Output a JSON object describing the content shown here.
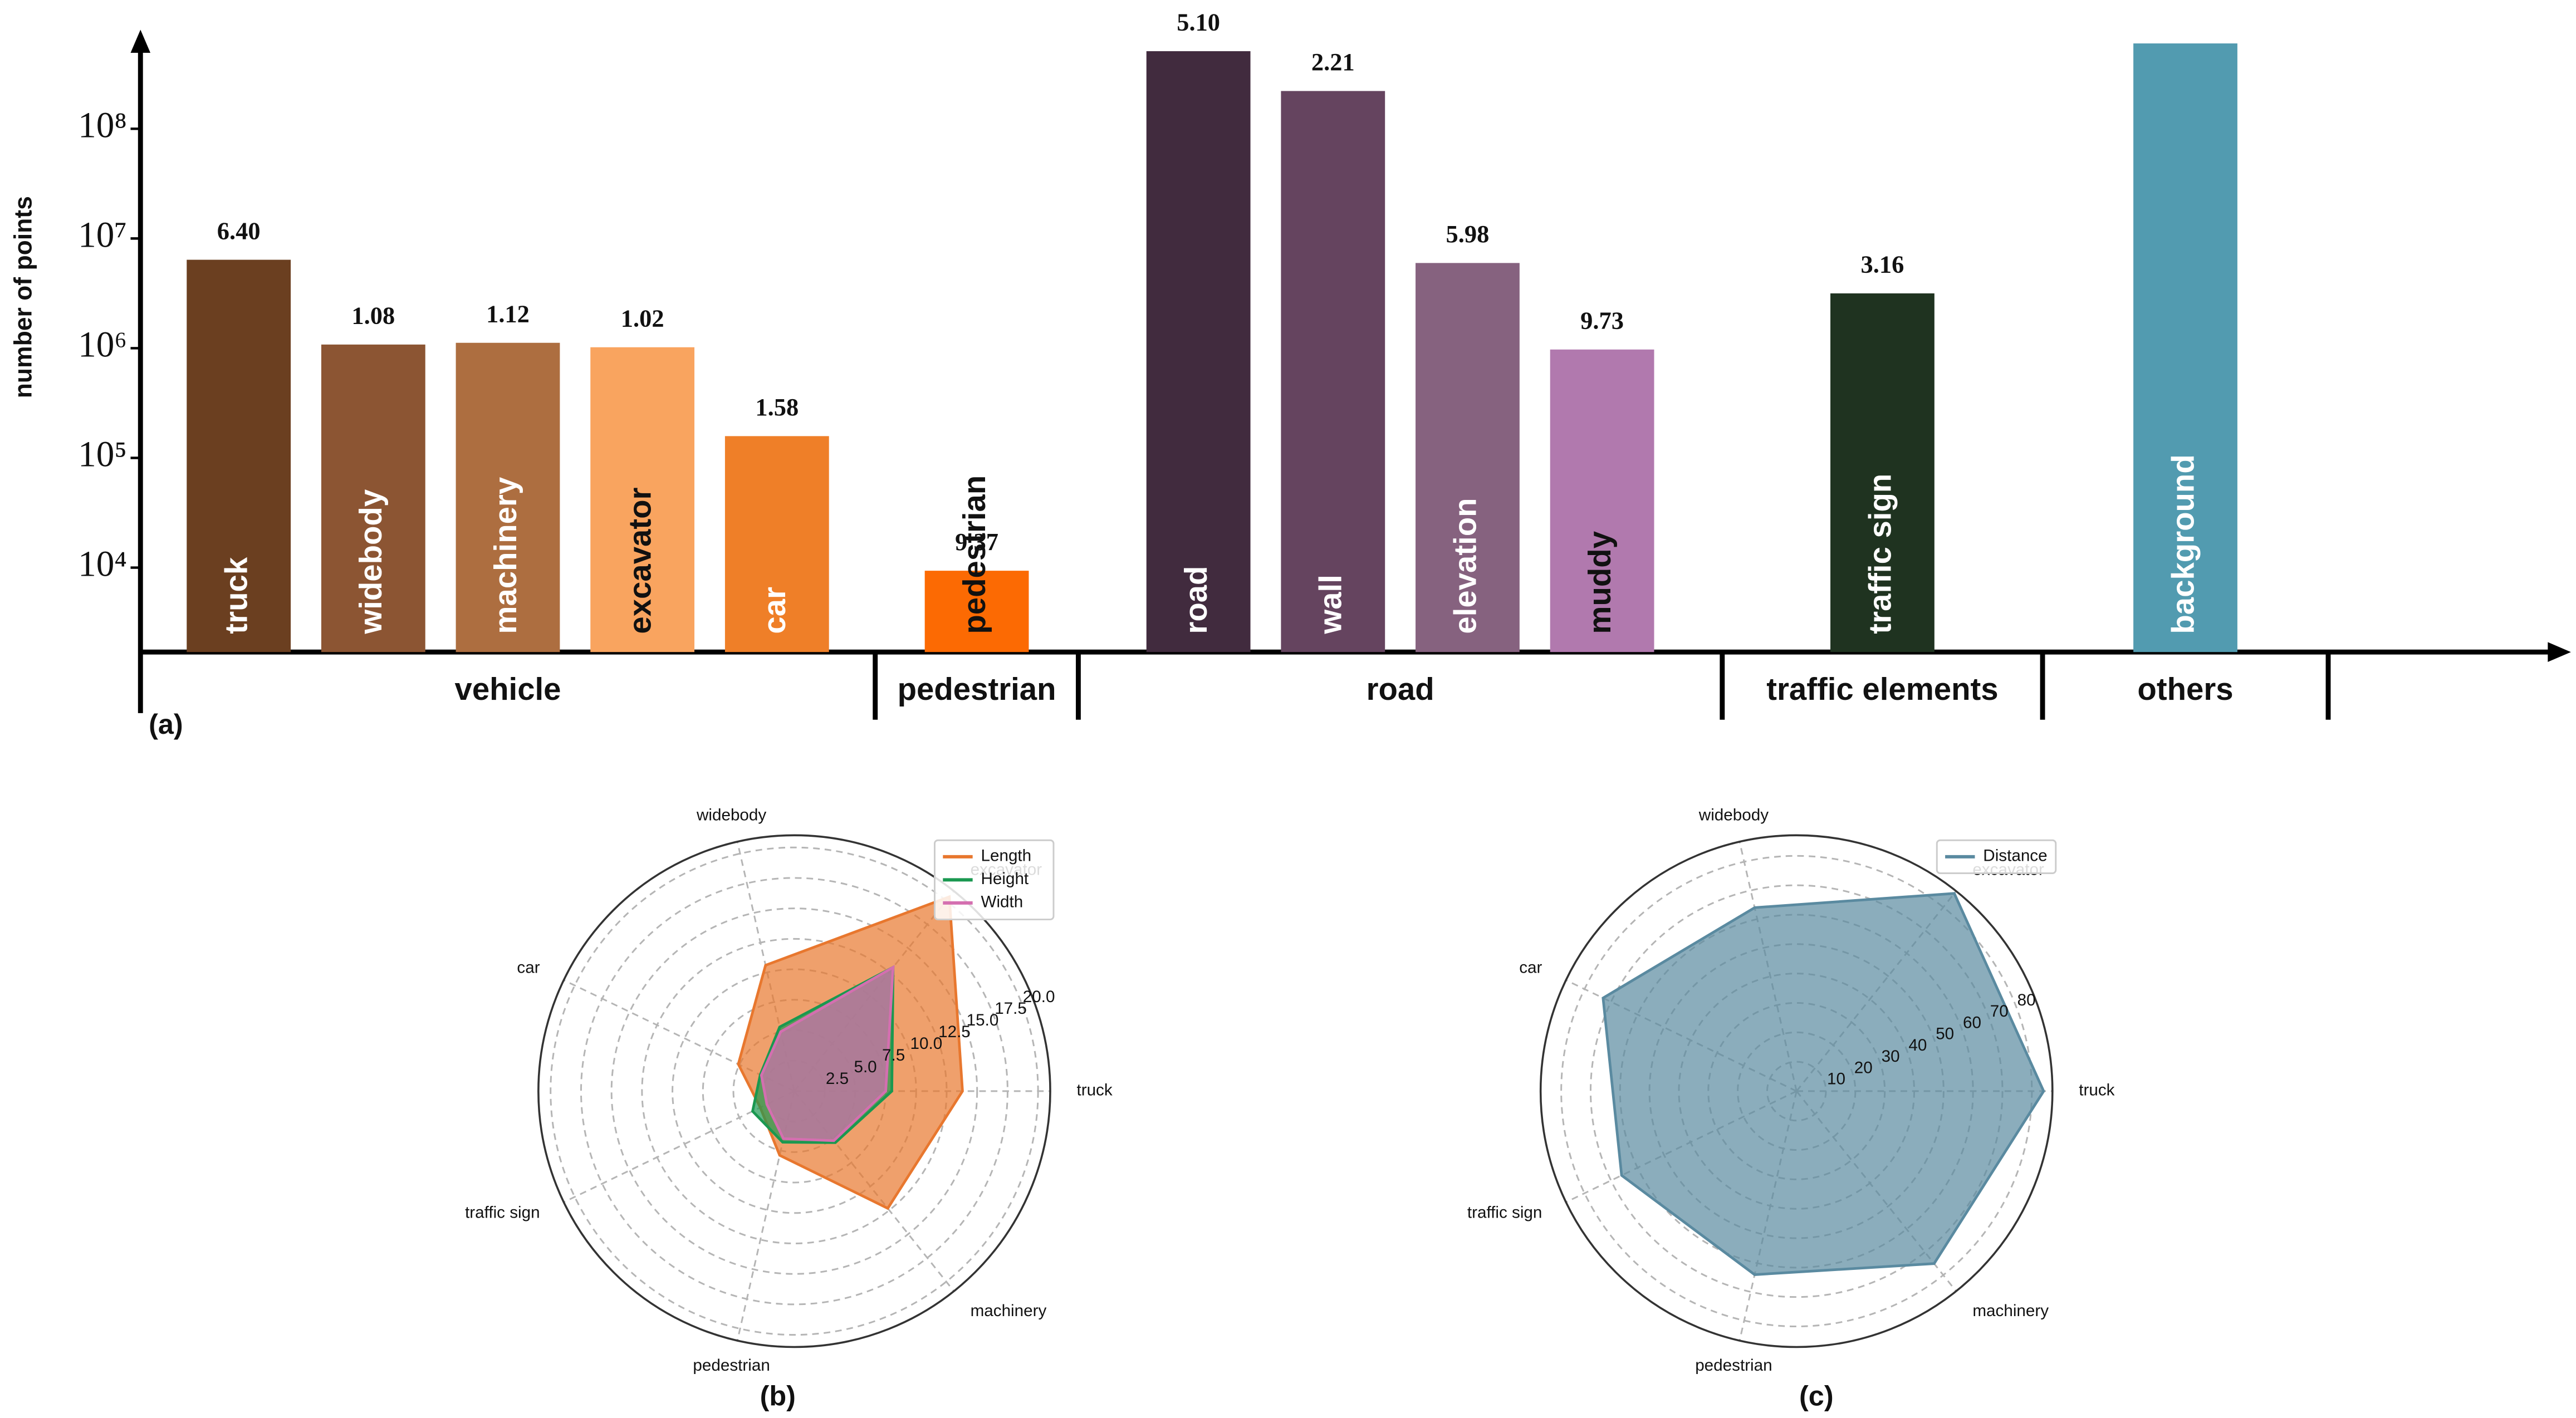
{
  "chart_data": [
    {
      "type": "bar",
      "label": "(a)",
      "ylabel": "number of points",
      "yscale": "log",
      "categories": [
        "truck",
        "widebody",
        "machinery",
        "excavator",
        "car",
        "pedestrian",
        "road",
        "wall",
        "elevation",
        "muddy",
        "traffic sign",
        "background"
      ],
      "values": [
        6400000,
        1080000,
        1120000,
        1020000,
        158000,
        9370,
        510000000,
        221000000,
        5980000,
        973000,
        3160000,
        600000000
      ],
      "value_labels": [
        "6.40",
        "1.08",
        "1.12",
        "1.02",
        "1.58",
        "9.37",
        "5.10",
        "2.21",
        "5.98",
        "9.73",
        "3.16",
        null
      ],
      "colors": [
        "#6b3f20",
        "#8c5533",
        "#ad6e40",
        "#f9a45f",
        "#ef7f28",
        "#fc6a03",
        "#412b3e",
        "#65445f",
        "#86627f",
        "#b179ae",
        "#1f3320",
        "#529bb0"
      ],
      "label_colors": [
        "#ffffff",
        "#ffffff",
        "#ffffff",
        "#111111",
        "#ffffff",
        "#111111",
        "#ffffff",
        "#ffffff",
        "#ffffff",
        "#111111",
        "#ffffff",
        "#ffffff"
      ],
      "groups": [
        {
          "name": "vehicle",
          "size": 5
        },
        {
          "name": "pedestrian",
          "size": 1
        },
        {
          "name": "road",
          "size": 4
        },
        {
          "name": "traffic elements",
          "size": 1
        },
        {
          "name": "others",
          "size": 1
        }
      ],
      "ylim": [
        1700,
        800000000
      ],
      "yticks": [
        {
          "value": 10000,
          "label": "10⁴"
        },
        {
          "value": 100000,
          "label": "10⁵"
        },
        {
          "value": 1000000,
          "label": "10⁶"
        },
        {
          "value": 10000000,
          "label": "10⁷"
        },
        {
          "value": 100000000,
          "label": "10⁸"
        }
      ]
    },
    {
      "type": "radar",
      "label": "(b)",
      "categories": [
        "truck",
        "excavator",
        "widebody",
        "car",
        "traffic sign",
        "pedestrian",
        "machinery"
      ],
      "series": [
        {
          "name": "Length",
          "color": "#e8772e",
          "values": [
            13.8,
            20.4,
            10.6,
            5.1,
            3.1,
            5.4,
            12.3
          ]
        },
        {
          "name": "Height",
          "color": "#1a9850",
          "values": [
            8.0,
            13.0,
            5.4,
            3.1,
            3.8,
            4.3,
            5.4
          ]
        },
        {
          "name": "Width",
          "color": "#d46fb0",
          "values": [
            7.5,
            13.0,
            5.0,
            3.0,
            2.5,
            4.0,
            5.2
          ]
        }
      ],
      "rlim": [
        0,
        21
      ],
      "rticks": [
        2.5,
        {
          "value": 5,
          "label": "5.0"
        },
        7.5,
        {
          "value": 10,
          "label": "10.0"
        },
        12.5,
        {
          "value": 15,
          "label": "15.0"
        },
        17.5,
        {
          "value": 20,
          "label": "20.0"
        }
      ],
      "legend": "upper right"
    },
    {
      "type": "radar",
      "label": "(c)",
      "categories": [
        "truck",
        "excavator",
        "widebody",
        "car",
        "traffic sign",
        "pedestrian",
        "machinery"
      ],
      "series": [
        {
          "name": "Distance",
          "color": "#5a8aa0",
          "values": [
            84,
            86,
            64,
            73,
            66,
            64,
            75
          ]
        }
      ],
      "rlim": [
        0,
        87
      ],
      "rticks": [
        10,
        20,
        30,
        40,
        50,
        60,
        70,
        80
      ],
      "legend": "upper right"
    }
  ]
}
